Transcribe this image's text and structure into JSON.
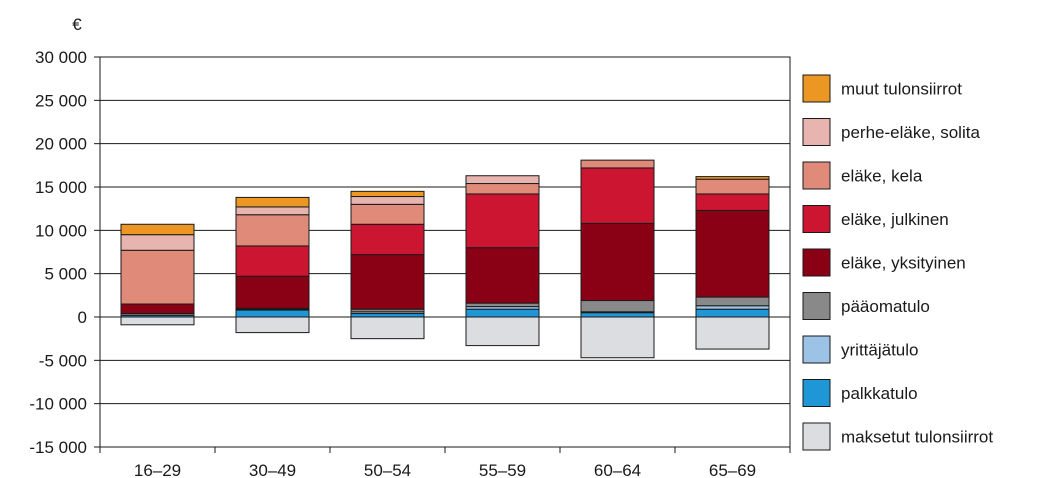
{
  "chart_data": {
    "type": "bar",
    "stacked": true,
    "unit": "€",
    "categories": [
      "16–29",
      "30–49",
      "50–54",
      "55–59",
      "60–64",
      "65–69"
    ],
    "ylim": [
      -15000,
      30000
    ],
    "yticks": [
      30000,
      25000,
      20000,
      15000,
      10000,
      5000,
      0,
      -5000,
      -10000,
      -15000
    ],
    "ytick_labels": [
      "30 000",
      "25 000",
      "20 000",
      "15 000",
      "10 000",
      "5 000",
      "0",
      "-5 000",
      "-10 000",
      "-15 000"
    ],
    "grid": true,
    "legend_position": "right",
    "series": [
      {
        "name": "palkkatulo",
        "color": "#1f96d6",
        "values": [
          200,
          800,
          400,
          900,
          500,
          900
        ]
      },
      {
        "name": "yrittäjätulo",
        "color": "#9cc3e6",
        "values": [
          0,
          100,
          200,
          300,
          100,
          400
        ]
      },
      {
        "name": "pääomatulo",
        "color": "#898989",
        "values": [
          200,
          100,
          300,
          400,
          1300,
          1000
        ]
      },
      {
        "name": "eläke, yksityinen",
        "color": "#8a0015",
        "values": [
          1100,
          3700,
          6300,
          6400,
          8900,
          10000
        ]
      },
      {
        "name": "eläke, julkinen",
        "color": "#cc1530",
        "values": [
          0,
          3500,
          3500,
          6200,
          6400,
          1900
        ]
      },
      {
        "name": "eläke, kela",
        "color": "#e08a79",
        "values": [
          6200,
          3600,
          2300,
          1200,
          900,
          1700
        ]
      },
      {
        "name": "perhe-eläke, solita",
        "color": "#e8b4b0",
        "values": [
          1800,
          900,
          900,
          900,
          0,
          0
        ]
      },
      {
        "name": "muut tulonsiirrot",
        "color": "#ec9724",
        "values": [
          1200,
          1100,
          600,
          0,
          0,
          300
        ]
      },
      {
        "name": "maksetut tulonsiirrot",
        "color": "#dcdde0",
        "values": [
          -900,
          -1800,
          -2500,
          -3300,
          -4700,
          -3700
        ]
      }
    ],
    "legend_order": [
      "muut tulonsiirrot",
      "perhe-eläke, solita",
      "eläke, kela",
      "eläke, julkinen",
      "eläke, yksityinen",
      "pääomatulo",
      "yrittäjätulo",
      "palkkatulo",
      "maksetut tulonsiirrot"
    ]
  }
}
